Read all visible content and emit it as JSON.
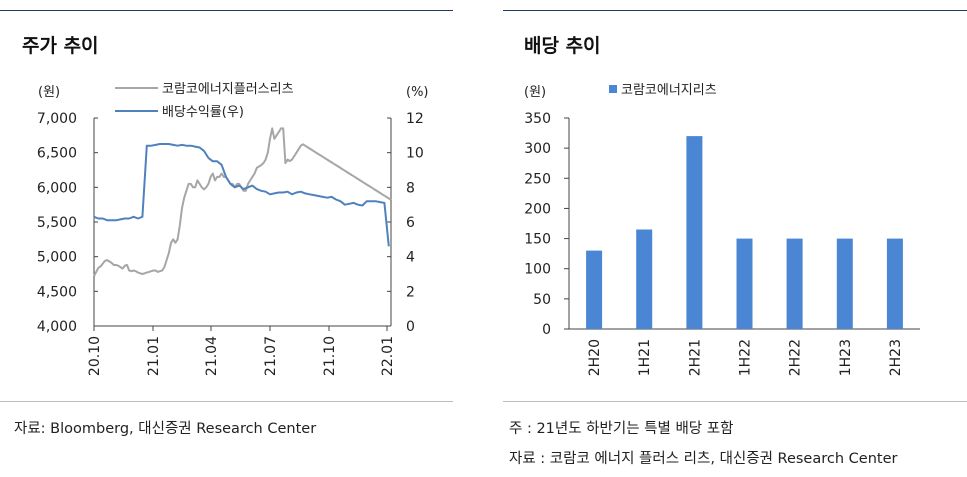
{
  "left_panel": {
    "title": "주가 추이",
    "source": "자료: Bloomberg, 대신증권 Research Center"
  },
  "right_panel": {
    "title": "배당 추이",
    "note": "주 : 21년도 하반기는 특별 배당 포함",
    "source": "자료 : 코람코 에너지 플러스 리츠, 대신증권 Research Center"
  },
  "colors": {
    "price": "#a6a6a6",
    "yield": "#4f81bd",
    "bar": "#4a86d4",
    "axis": "#444444"
  },
  "chart_data": [
    {
      "type": "line",
      "title": "주가 추이",
      "left_unit": "(원)",
      "right_unit": "(%)",
      "x_ticks": [
        "20.10",
        "21.01",
        "21.04",
        "21.07",
        "21.10",
        "22.01"
      ],
      "y_left": {
        "min": 4000,
        "max": 7000,
        "ticks": [
          "4,000",
          "4,500",
          "5,000",
          "5,500",
          "6,000",
          "6,500",
          "7,000"
        ]
      },
      "y_right": {
        "min": 0,
        "max": 12,
        "ticks": [
          "0",
          "2",
          "4",
          "6",
          "8",
          "10",
          "12"
        ]
      },
      "grid": false,
      "legend_position": "top",
      "series": [
        {
          "name": "코람코에너지플러스리츠",
          "axis": "left",
          "x": [
            0,
            0.5,
            1,
            1.5,
            2,
            2.5,
            3,
            3.5,
            4,
            4.5,
            5,
            5.5,
            6,
            6.5,
            7,
            7.5,
            8,
            8.5,
            9,
            9.5,
            10,
            10.5,
            11,
            11.5,
            12,
            12.5,
            13,
            13.5,
            14,
            14.5,
            15,
            15.5,
            16,
            16.5,
            17,
            17.5,
            18,
            18.5,
            19,
            19.5,
            20,
            20.5,
            21,
            21.5,
            22,
            22.5,
            23,
            23.5,
            24,
            24.5,
            25,
            25.5,
            26,
            26.5,
            27,
            27.5,
            28,
            28.5,
            29,
            29.5,
            30,
            30.5,
            31,
            31.5,
            32,
            32.5,
            33,
            33.5,
            34,
            34.5,
            35,
            35.5,
            36,
            36.5,
            37,
            37.5,
            38,
            38.5,
            39,
            39.5,
            40,
            40.5,
            41,
            41.5,
            42,
            42.5,
            43,
            43.5,
            44,
            44.5,
            45,
            45.5,
            46,
            46.5,
            47,
            47.5,
            48,
            48.5,
            49,
            49.5,
            50,
            50.5,
            51,
            51.5,
            52,
            52.5,
            53,
            53.5,
            54,
            54.5,
            55,
            55.5,
            56,
            56.5,
            57,
            57.5,
            58,
            58.5,
            59,
            59.5,
            60,
            60.5,
            61,
            61.5,
            62,
            62.5,
            63,
            63.5,
            64,
            64.5,
            65,
            65.5,
            66,
            66.5,
            67,
            67.5
          ],
          "values": [
            4720,
            4780,
            4840,
            4860,
            4900,
            4940,
            4950,
            4930,
            4910,
            4880,
            4880,
            4870,
            4850,
            4830,
            4870,
            4880,
            4800,
            4790,
            4800,
            4790,
            4770,
            4760,
            4750,
            4760,
            4770,
            4780,
            4790,
            4800,
            4800,
            4780,
            4790,
            4800,
            4850,
            4950,
            5050,
            5200,
            5250,
            5200,
            5250,
            5450,
            5700,
            5850,
            5950,
            6050,
            6050,
            6000,
            6000,
            6100,
            6050,
            6000,
            5970,
            6000,
            6050,
            6150,
            6200,
            6100,
            6150,
            6150,
            6200,
            6150,
            6150,
            6100,
            6050,
            6050,
            6000,
            6050,
            6050,
            6000,
            5950,
            5950,
            6050,
            6100,
            6150,
            6200,
            6280,
            6300,
            6320,
            6350,
            6400,
            6500,
            6700,
            6850,
            6700,
            6750,
            6800,
            6850,
            6850,
            6350,
            6400,
            6380,
            6400,
            6450,
            6500,
            6550,
            6600,
            6620,
            6600,
            6580,
            6560,
            6540,
            6520,
            6500,
            6480,
            6460,
            6440,
            6420,
            6400,
            6380,
            6360,
            6340,
            6320,
            6300,
            6280,
            6260,
            6240,
            6220,
            6200,
            6180,
            6160,
            6140,
            6120,
            6100,
            6080,
            6060,
            6040,
            6020,
            6000,
            5980,
            5960,
            5940,
            5920,
            5900,
            5880,
            5860,
            5840,
            5820
          ]
        },
        {
          "name": "배당수익률(우)",
          "axis": "right",
          "x": [
            0,
            1,
            2,
            3,
            4,
            5,
            6,
            7,
            8,
            9,
            10,
            11,
            12,
            13,
            14,
            15,
            16,
            17,
            18,
            19,
            20,
            21,
            22,
            23,
            24,
            25,
            26,
            27,
            28,
            29,
            30,
            31,
            32,
            33,
            34,
            35,
            36,
            37,
            38,
            39,
            40,
            41,
            42,
            43,
            44,
            45,
            46,
            47,
            48,
            49,
            50,
            51,
            52,
            53,
            54,
            55,
            56,
            57,
            58,
            59,
            60,
            61,
            62,
            63,
            64,
            65,
            66,
            67
          ],
          "values": [
            6.3,
            6.2,
            6.2,
            6.1,
            6.1,
            6.1,
            6.15,
            6.2,
            6.2,
            6.3,
            6.2,
            6.3,
            10.4,
            10.4,
            10.45,
            10.5,
            10.5,
            10.5,
            10.45,
            10.4,
            10.45,
            10.4,
            10.4,
            10.35,
            10.3,
            10.1,
            9.7,
            9.5,
            9.5,
            9.3,
            8.6,
            8.2,
            8.0,
            8.1,
            7.9,
            8.0,
            8.1,
            7.9,
            7.8,
            7.75,
            7.6,
            7.65,
            7.7,
            7.7,
            7.75,
            7.6,
            7.7,
            7.75,
            7.65,
            7.6,
            7.55,
            7.5,
            7.45,
            7.4,
            7.45,
            7.3,
            7.2,
            7.0,
            7.05,
            7.1,
            7.0,
            6.95,
            7.2,
            7.2,
            7.2,
            7.15,
            7.1,
            4.6
          ]
        }
      ]
    },
    {
      "type": "bar",
      "title": "배당 추이",
      "y_unit": "(원)",
      "categories": [
        "2H20",
        "1H21",
        "2H21",
        "1H22",
        "2H22",
        "1H23",
        "2H23"
      ],
      "y_ticks": [
        "0",
        "50",
        "100",
        "150",
        "200",
        "250",
        "300",
        "350"
      ],
      "ylim": [
        0,
        350
      ],
      "grid": false,
      "legend_position": "top",
      "series": [
        {
          "name": "코람코에너지리츠",
          "values": [
            130,
            165,
            320,
            150,
            150,
            150,
            150
          ]
        }
      ]
    }
  ]
}
